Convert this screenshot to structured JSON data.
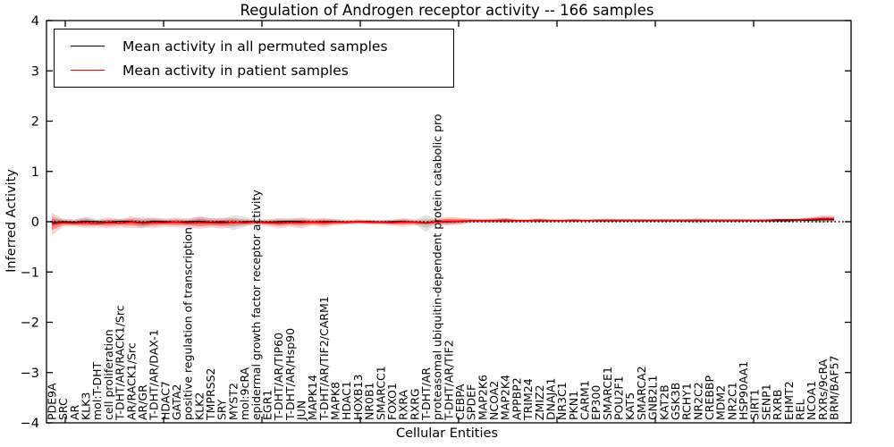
{
  "figure": {
    "title": "Regulation of Androgen receptor activity -- 166 samples",
    "xlabel": "Cellular Entities",
    "ylabel": "Inferred Activity"
  },
  "legend": {
    "items": [
      {
        "label": "Mean activity in all permuted samples",
        "color": "#000000"
      },
      {
        "label": "Mean activity in patient samples",
        "color": "#ff0000"
      }
    ]
  },
  "chart_data": {
    "type": "line",
    "title": "Regulation of Androgen receptor activity -- 166 samples",
    "xlabel": "Cellular Entities",
    "ylabel": "Inferred Activity",
    "ylim": [
      -4,
      4
    ],
    "yticks": [
      -4,
      -3,
      -2,
      -1,
      0,
      1,
      2,
      3,
      4
    ],
    "grid": false,
    "legend_position": "upper left",
    "zero_reference_line": true,
    "categories": [
      "PDE9A",
      "SRC",
      "AR",
      "KLK3",
      "mol:T-DHT",
      "cell proliferation",
      "T-DHT/AR/RACK1/Src",
      "AR/RACK1/Src",
      "AR/GR",
      "T-DHT/AR/DAX-1",
      "HDAC7",
      "GATA2",
      "positive regulation of transcription",
      "KLK2",
      "TMPRSS2",
      "SRY",
      "MYST2",
      "mol:9cRA",
      "epidermal growth factor receptor activity",
      "EGR1",
      "T-DHT/AR/TIP60",
      "T-DHT/AR/Hsp90",
      "JUN",
      "MAPK14",
      "T-DHT/AR/TIF2/CARM1",
      "MAPK8",
      "HDAC1",
      "HOXB13",
      "NR0B1",
      "SMARCC1",
      "FOXO1",
      "RXRA",
      "RXRG",
      "T-DHT/AR",
      "proteasomal ubiquitin-dependent protein catabolic pro",
      "T-DHT/AR/TIF2",
      "CEBPA",
      "SPDEF",
      "MAP2K6",
      "NCOA2",
      "MAP2K4",
      "APPBP2",
      "TRIM24",
      "ZMIZ2",
      "DNAJA1",
      "NR3C1",
      "PKN1",
      "CARM1",
      "EP300",
      "SMARCE1",
      "POU2F1",
      "KAT5",
      "SMARCA2",
      "GNB2L1",
      "KAT2B",
      "GSK3B",
      "RCHY1",
      "NR2C2",
      "CREBBP",
      "MDM2",
      "NR2C1",
      "HSP90AA1",
      "SIRT1",
      "SENP1",
      "RXRB",
      "EHMT2",
      "REL",
      "NCOA1",
      "RXRs/9cRA",
      "BRM/BAF57"
    ],
    "series": [
      {
        "name": "Mean activity in all permuted samples",
        "color": "#000000",
        "band_color": "rgba(128,128,128,0.27)",
        "values": [
          -0.02,
          0.0,
          -0.01,
          0.01,
          0.0,
          -0.01,
          0.01,
          0.0,
          -0.02,
          0.01,
          0.0,
          -0.01,
          0.0,
          0.01,
          -0.01,
          0.0,
          -0.02,
          0.0,
          0.0,
          -0.01,
          0.0,
          0.01,
          0.0,
          -0.01,
          0.0,
          0.0,
          -0.01,
          0.0,
          0.0,
          -0.01,
          0.0,
          0.0,
          -0.01,
          -0.03,
          0.0,
          0.0,
          0.01,
          0.02,
          0.02,
          0.02,
          0.02,
          0.02,
          0.02,
          0.02,
          0.02,
          0.02,
          0.02,
          0.02,
          0.02,
          0.02,
          0.02,
          0.02,
          0.02,
          0.02,
          0.02,
          0.02,
          0.02,
          0.02,
          0.02,
          0.02,
          0.02,
          0.02,
          0.02,
          0.02,
          0.02,
          0.02,
          0.03,
          0.03,
          0.04,
          0.04
        ],
        "std": [
          0.12,
          0.05,
          0.05,
          0.09,
          0.05,
          0.06,
          0.05,
          0.06,
          0.12,
          0.06,
          0.05,
          0.06,
          0.05,
          0.1,
          0.08,
          0.06,
          0.15,
          0.1,
          0.04,
          0.05,
          0.06,
          0.05,
          0.06,
          0.05,
          0.06,
          0.05,
          0.04,
          0.05,
          0.04,
          0.05,
          0.04,
          0.05,
          0.04,
          0.17,
          0.05,
          0.06,
          0.05,
          0.04,
          0.04,
          0.04,
          0.05,
          0.04,
          0.03,
          0.04,
          0.03,
          0.03,
          0.03,
          0.03,
          0.03,
          0.03,
          0.03,
          0.03,
          0.03,
          0.03,
          0.03,
          0.03,
          0.03,
          0.07,
          0.03,
          0.03,
          0.03,
          0.03,
          0.03,
          0.03,
          0.03,
          0.03,
          0.03,
          0.05,
          0.06,
          0.04
        ]
      },
      {
        "name": "Mean activity in patient samples",
        "color": "#ff0000",
        "band_color": "rgba(255,0,0,0.30)",
        "values": [
          -0.05,
          -0.02,
          -0.03,
          -0.02,
          -0.04,
          -0.02,
          -0.03,
          -0.01,
          -0.03,
          -0.02,
          -0.02,
          -0.01,
          -0.03,
          -0.02,
          -0.02,
          -0.03,
          -0.01,
          -0.02,
          -0.01,
          -0.02,
          -0.03,
          -0.02,
          -0.02,
          -0.01,
          -0.02,
          -0.01,
          -0.01,
          0.0,
          -0.01,
          -0.01,
          -0.02,
          -0.01,
          -0.01,
          -0.02,
          0.0,
          0.01,
          0.01,
          0.02,
          0.02,
          0.02,
          0.03,
          0.02,
          0.02,
          0.03,
          0.02,
          0.02,
          0.03,
          0.02,
          0.03,
          0.03,
          0.03,
          0.03,
          0.03,
          0.03,
          0.03,
          0.03,
          0.03,
          0.03,
          0.03,
          0.03,
          0.03,
          0.03,
          0.03,
          0.03,
          0.04,
          0.04,
          0.04,
          0.05,
          0.06,
          0.06
        ],
        "std": [
          0.22,
          0.08,
          0.07,
          0.1,
          0.07,
          0.11,
          0.08,
          0.12,
          0.08,
          0.11,
          0.08,
          0.1,
          0.09,
          0.12,
          0.09,
          0.11,
          0.08,
          0.06,
          0.05,
          0.07,
          0.1,
          0.08,
          0.11,
          0.07,
          0.1,
          0.06,
          0.05,
          0.04,
          0.05,
          0.04,
          0.06,
          0.09,
          0.06,
          0.04,
          0.07,
          0.09,
          0.07,
          0.04,
          0.03,
          0.04,
          0.05,
          0.03,
          0.03,
          0.04,
          0.03,
          0.02,
          0.03,
          0.02,
          0.02,
          0.03,
          0.02,
          0.02,
          0.02,
          0.02,
          0.02,
          0.02,
          0.02,
          0.02,
          0.02,
          0.02,
          0.02,
          0.02,
          0.02,
          0.02,
          0.02,
          0.02,
          0.03,
          0.04,
          0.07,
          0.06
        ]
      }
    ]
  }
}
